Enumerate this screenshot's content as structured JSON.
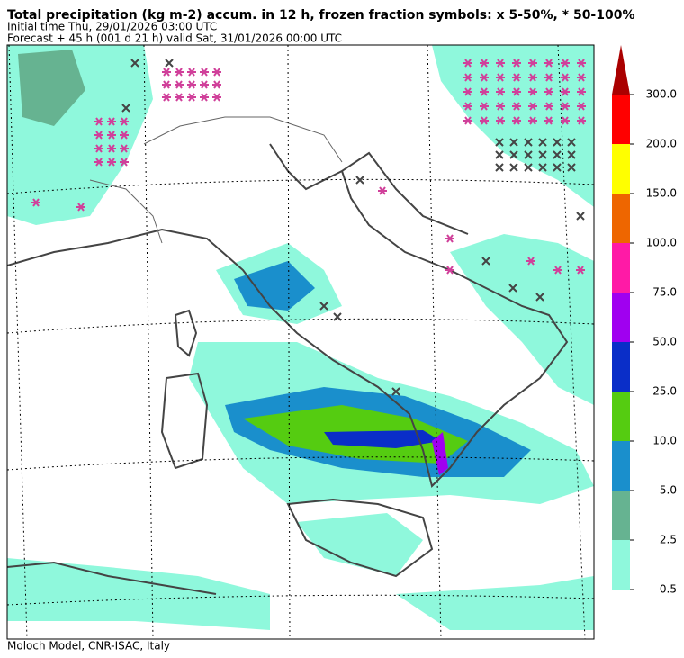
{
  "header": {
    "title": "Total precipitation (kg m-2) accum. in 12 h, frozen fraction symbols: x 5-50%, * 50-100%",
    "initial": "Initial time  Thu, 29/01/2026  03:00 UTC",
    "forecast": "Forecast  +  45 h  (001 d 21 h)  valid Sat, 31/01/2026 00:00 UTC"
  },
  "colorbar": {
    "levels": [
      {
        "value": 0.5,
        "label": "0.5"
      },
      {
        "value": 2.5,
        "label": "2.5"
      },
      {
        "value": 5,
        "label": "5.0"
      },
      {
        "value": 10,
        "label": "10.0"
      },
      {
        "value": 25,
        "label": "25.0"
      },
      {
        "value": 50,
        "label": "50.0"
      },
      {
        "value": 75,
        "label": "75.0"
      },
      {
        "value": 100,
        "label": "100.0"
      },
      {
        "value": 150,
        "label": "150.0"
      },
      {
        "value": 200,
        "label": "200.0"
      },
      {
        "value": 300,
        "label": "300.0"
      }
    ],
    "colors": [
      "#8ff8dc",
      "#66b391",
      "#1a8fcc",
      "#55cc11",
      "#0a2ec8",
      "#a000f0",
      "#ff1aa6",
      "#ee6600",
      "#ffff00",
      "#ff0000"
    ],
    "extend_color": "#aa0000"
  },
  "footer": "Moloch Model, CNR-ISAC, Italy"
}
